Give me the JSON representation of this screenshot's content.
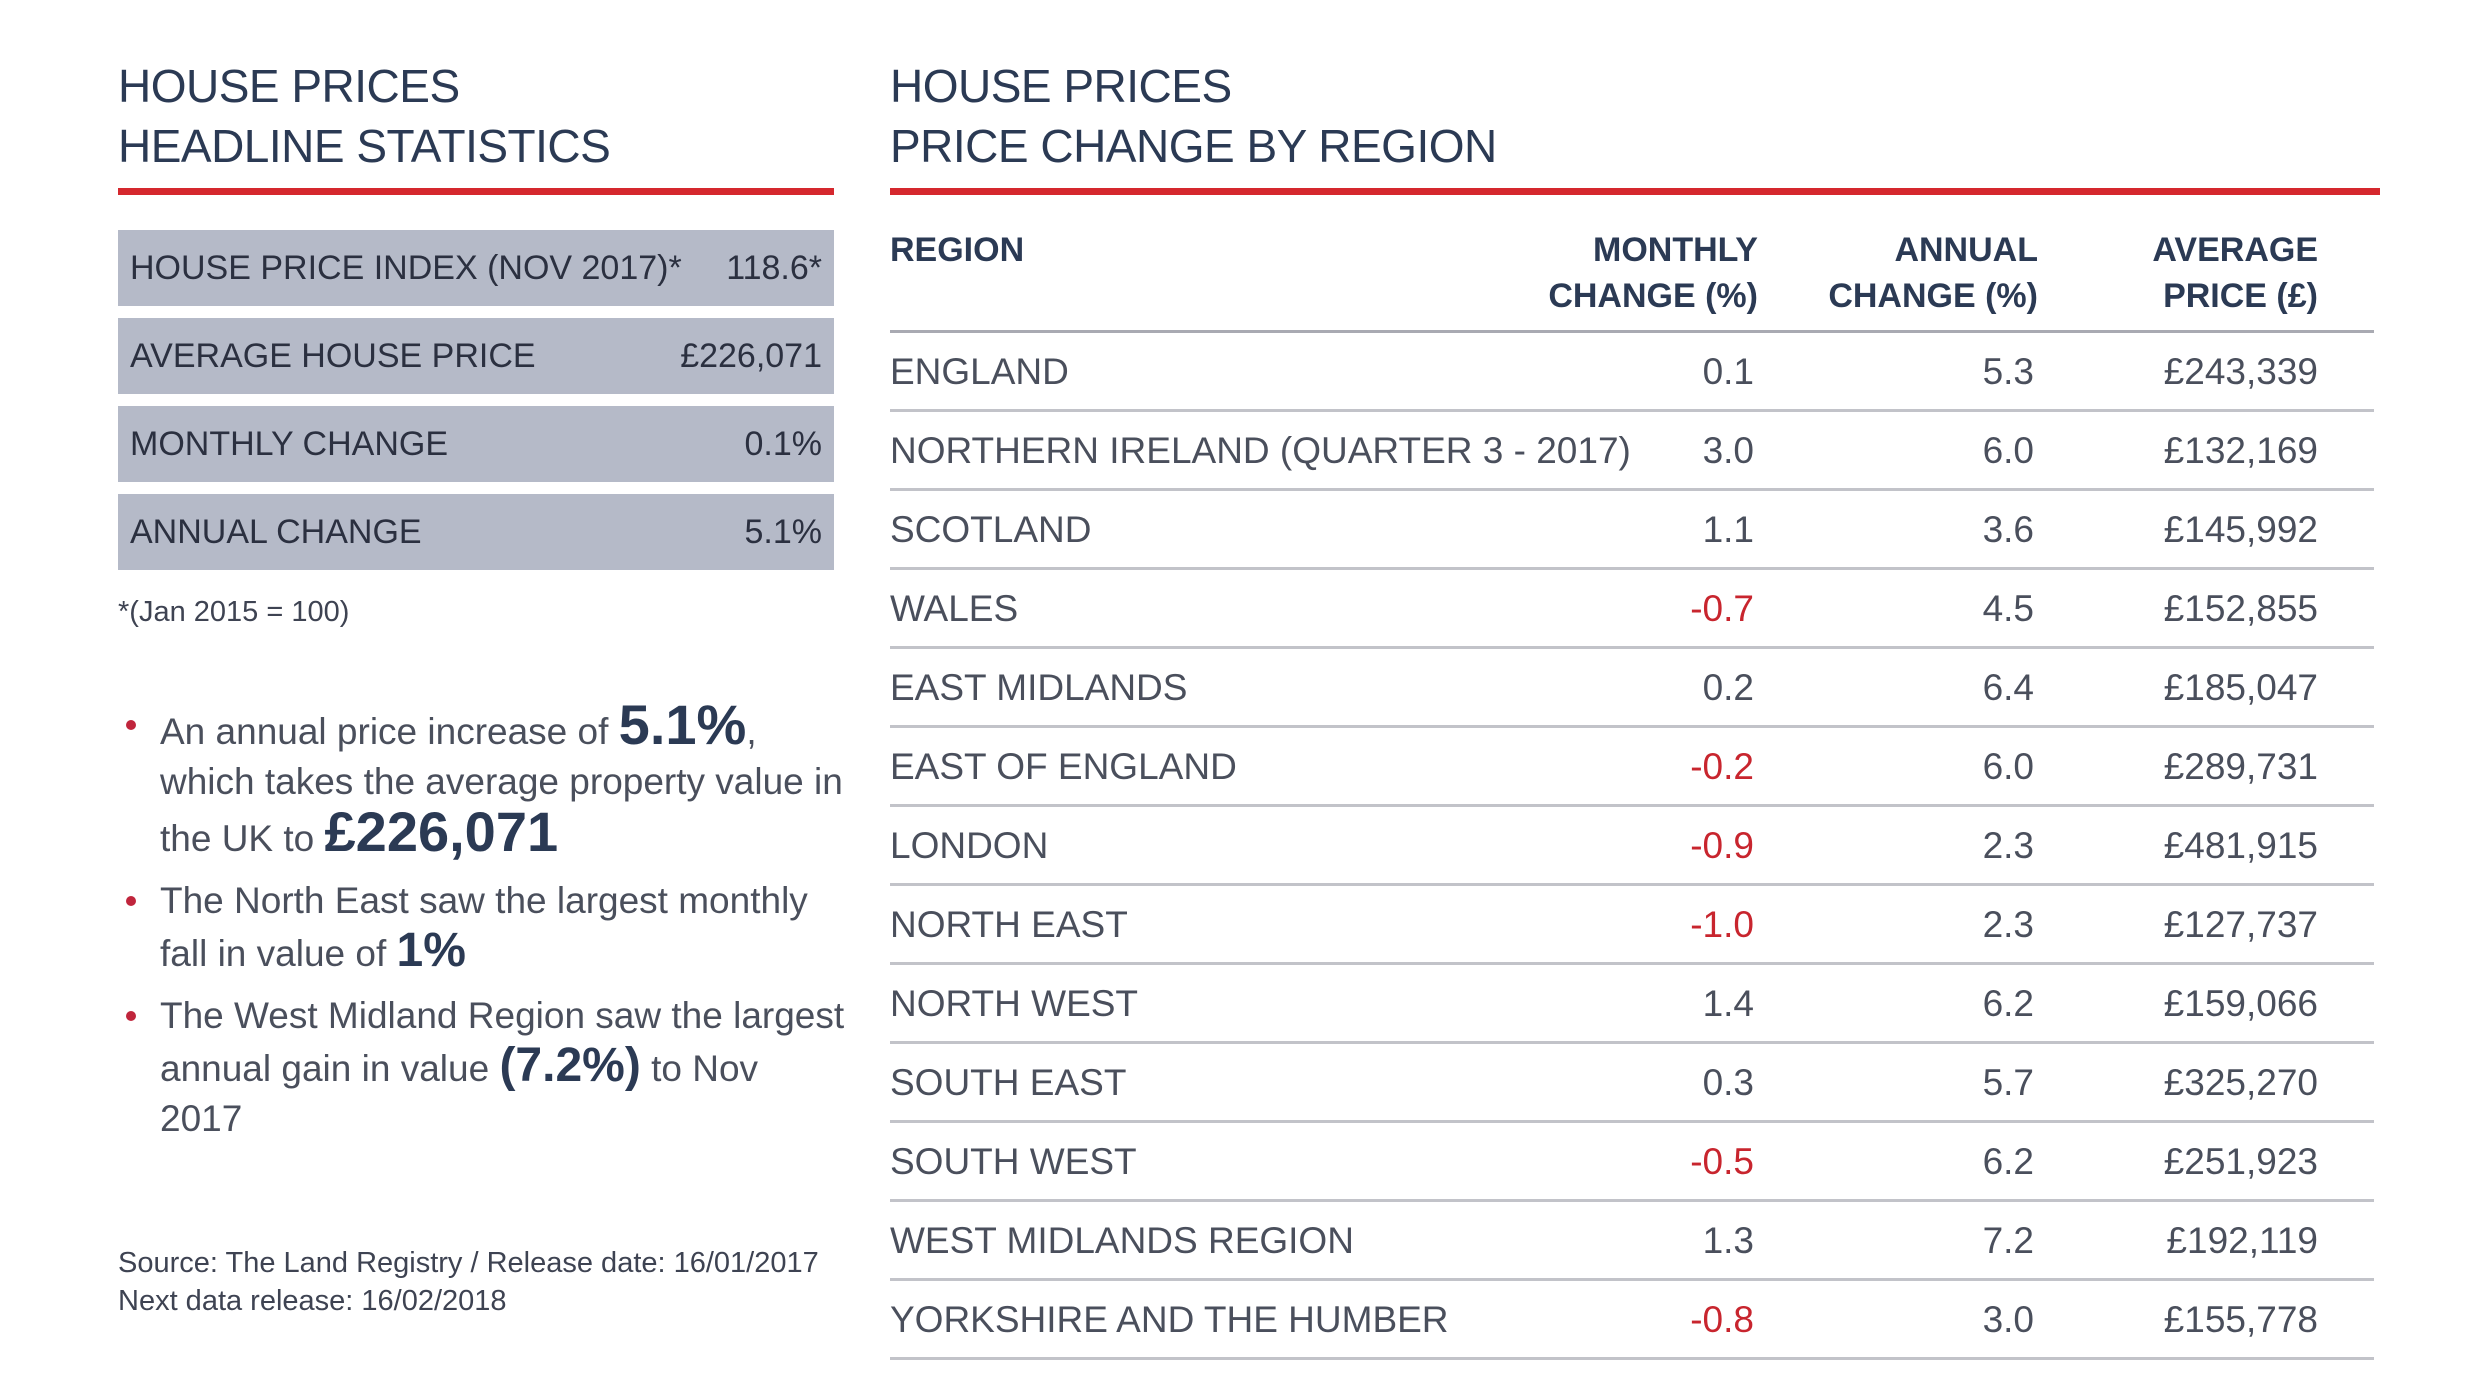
{
  "left": {
    "heading_line1": "HOUSE PRICES",
    "heading_line2": "HEADLINE STATISTICS",
    "stats": [
      {
        "label": "HOUSE PRICE INDEX (NOV 2017)*",
        "value": "118.6*"
      },
      {
        "label": "AVERAGE HOUSE PRICE",
        "value": "£226,071"
      },
      {
        "label": "MONTHLY CHANGE",
        "value": "0.1%"
      },
      {
        "label": "ANNUAL CHANGE",
        "value": "5.1%"
      }
    ],
    "footnote": "*(Jan 2015 = 100)",
    "bullet1": {
      "t1": "An annual price increase of ",
      "em1": "5.1%",
      "t2": ", which takes the average property value in the UK to ",
      "em2": "£226,071"
    },
    "bullet2": {
      "t1": "The North East saw the largest monthly fall in value of ",
      "em1": "1%"
    },
    "bullet3": {
      "t1": "The West Midland Region saw the largest annual gain in value ",
      "em1": "(7.2%)",
      "t2": " to Nov 2017"
    },
    "source_line1": "Source: The Land Registry / Release date: 16/01/2017",
    "source_line2": "Next data release: 16/02/2018"
  },
  "right": {
    "heading_line1": "HOUSE PRICES",
    "heading_line2": "PRICE CHANGE BY REGION",
    "headers": {
      "region": "REGION",
      "monthly_1": "MONTHLY",
      "monthly_2": "CHANGE (%)",
      "annual_1": "ANNUAL",
      "annual_2": "CHANGE (%)",
      "price_1": "AVERAGE",
      "price_2": "PRICE (£)"
    },
    "rows": [
      {
        "region": "ENGLAND",
        "monthly": "0.1",
        "annual": "5.3",
        "price": "£243,339"
      },
      {
        "region": "NORTHERN IRELAND (QUARTER 3 - 2017)",
        "monthly": "3.0",
        "annual": "6.0",
        "price": "£132,169"
      },
      {
        "region": "SCOTLAND",
        "monthly": "1.1",
        "annual": "3.6",
        "price": "£145,992"
      },
      {
        "region": "WALES",
        "monthly": "-0.7",
        "annual": "4.5",
        "price": "£152,855"
      },
      {
        "region": "EAST MIDLANDS",
        "monthly": "0.2",
        "annual": "6.4",
        "price": "£185,047"
      },
      {
        "region": "EAST OF ENGLAND",
        "monthly": "-0.2",
        "annual": "6.0",
        "price": "£289,731"
      },
      {
        "region": "LONDON",
        "monthly": "-0.9",
        "annual": "2.3",
        "price": "£481,915"
      },
      {
        "region": "NORTH EAST",
        "monthly": "-1.0",
        "annual": "2.3",
        "price": "£127,737"
      },
      {
        "region": "NORTH WEST",
        "monthly": "1.4",
        "annual": "6.2",
        "price": "£159,066"
      },
      {
        "region": "SOUTH EAST",
        "monthly": "0.3",
        "annual": "5.7",
        "price": "£325,270"
      },
      {
        "region": "SOUTH WEST",
        "monthly": "-0.5",
        "annual": "6.2",
        "price": "£251,923"
      },
      {
        "region": "WEST MIDLANDS REGION",
        "monthly": "1.3",
        "annual": "7.2",
        "price": "£192,119"
      },
      {
        "region": "YORKSHIRE AND THE HUMBER",
        "monthly": "-0.8",
        "annual": "3.0",
        "price": "£155,778"
      }
    ]
  },
  "colors": {
    "accent_red": "#d5282e",
    "negative_red": "#c8252e",
    "heading_navy": "#2b3a54",
    "stat_box_grey": "#b5bac8"
  }
}
